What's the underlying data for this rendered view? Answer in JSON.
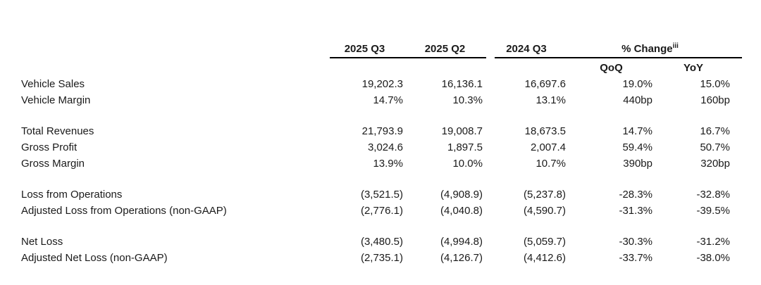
{
  "table": {
    "columns": [
      "2025 Q3",
      "2025 Q2",
      "2024 Q3"
    ],
    "change_header": {
      "label": "% Change",
      "superscript": "iii"
    },
    "subcolumns": [
      "QoQ",
      "YoY"
    ],
    "rows": [
      {
        "label": "Vehicle Sales",
        "values": [
          "19,202.3",
          "16,136.1",
          "16,697.6",
          "19.0%",
          "15.0%"
        ],
        "gap_before": false
      },
      {
        "label": "Vehicle Margin",
        "values": [
          "14.7%",
          "10.3%",
          "13.1%",
          "440bp",
          "160bp"
        ],
        "gap_before": false
      },
      {
        "label": "Total Revenues",
        "values": [
          "21,793.9",
          "19,008.7",
          "18,673.5",
          "14.7%",
          "16.7%"
        ],
        "gap_before": true
      },
      {
        "label": "Gross Profit",
        "values": [
          "3,024.6",
          "1,897.5",
          "2,007.4",
          "59.4%",
          "50.7%"
        ],
        "gap_before": false
      },
      {
        "label": "Gross Margin",
        "values": [
          "13.9%",
          "10.0%",
          "10.7%",
          "390bp",
          "320bp"
        ],
        "gap_before": false
      },
      {
        "label": "Loss from Operations",
        "values": [
          "(3,521.5)",
          "(4,908.9)",
          "(5,237.8)",
          "-28.3%",
          "-32.8%"
        ],
        "gap_before": true
      },
      {
        "label": "Adjusted Loss from Operations (non-GAAP)",
        "values": [
          "(2,776.1)",
          "(4,040.8)",
          "(4,590.7)",
          "-31.3%",
          "-39.5%"
        ],
        "gap_before": false
      },
      {
        "label": "Net Loss",
        "values": [
          "(3,480.5)",
          "(4,994.8)",
          "(5,059.7)",
          "-30.3%",
          "-31.2%"
        ],
        "gap_before": true
      },
      {
        "label": "Adjusted Net Loss (non-GAAP)",
        "values": [
          "(2,735.1)",
          "(4,126.7)",
          "(4,412.6)",
          "-33.7%",
          "-38.0%"
        ],
        "gap_before": false
      }
    ]
  },
  "colors": {
    "text": "#1a1a1a",
    "rule": "#000000",
    "background": "#ffffff"
  }
}
